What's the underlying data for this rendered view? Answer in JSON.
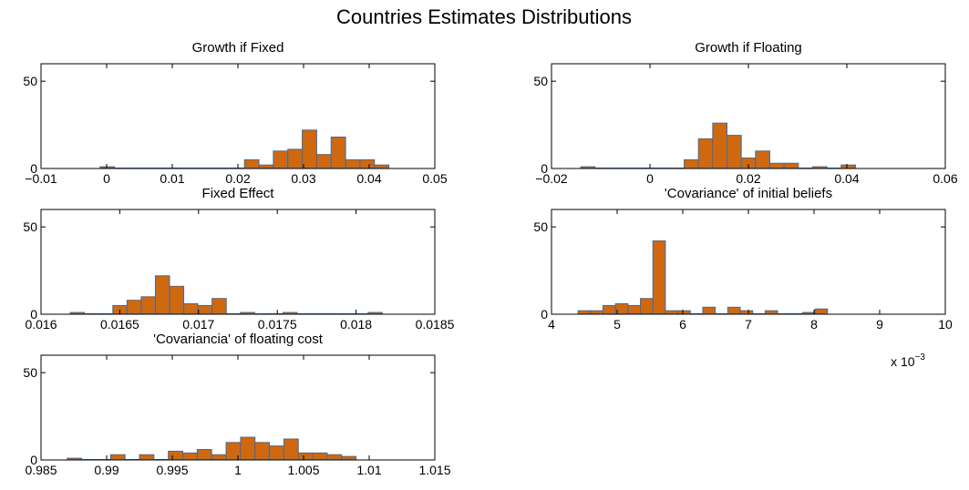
{
  "figure": {
    "title": "Countries Estimates Distributions"
  },
  "colors": {
    "bar_fill": "#D0680F",
    "bar_edge": "#3A6EA5",
    "axis": "#000000"
  },
  "chart_data": [
    {
      "type": "bar",
      "title": "Growth if Fixed",
      "xlim": [
        -0.01,
        0.05
      ],
      "ylim": [
        0,
        60
      ],
      "xticks": [
        -0.01,
        0,
        0.01,
        0.02,
        0.03,
        0.04,
        0.05
      ],
      "xtick_labels": [
        "−0.01",
        "0",
        "0.01",
        "0.02",
        "0.03",
        "0.04",
        "0.05"
      ],
      "yticks": [
        0,
        50
      ],
      "ytick_labels": [
        "0",
        "50"
      ],
      "bin_width": 0.0022,
      "bins": [
        {
          "x": 0.0001,
          "count": 1
        },
        {
          "x": 0.0221,
          "count": 5
        },
        {
          "x": 0.0243,
          "count": 2
        },
        {
          "x": 0.0265,
          "count": 10
        },
        {
          "x": 0.0287,
          "count": 11
        },
        {
          "x": 0.0309,
          "count": 22
        },
        {
          "x": 0.0331,
          "count": 8
        },
        {
          "x": 0.0353,
          "count": 18
        },
        {
          "x": 0.0375,
          "count": 5
        },
        {
          "x": 0.0397,
          "count": 5
        },
        {
          "x": 0.0419,
          "count": 2
        }
      ]
    },
    {
      "type": "bar",
      "title": "Growth if Floating",
      "xlim": [
        -0.02,
        0.06
      ],
      "ylim": [
        0,
        60
      ],
      "xticks": [
        -0.02,
        0,
        0.02,
        0.04,
        0.06
      ],
      "xtick_labels": [
        "−0.02",
        "0",
        "0.02",
        "0.04",
        "0.06"
      ],
      "yticks": [
        0,
        50
      ],
      "ytick_labels": [
        "0",
        "50"
      ],
      "bin_width": 0.0029,
      "bins": [
        {
          "x": -0.0126,
          "count": 1
        },
        {
          "x": 0.0084,
          "count": 5
        },
        {
          "x": 0.0113,
          "count": 17
        },
        {
          "x": 0.0142,
          "count": 26
        },
        {
          "x": 0.0171,
          "count": 19
        },
        {
          "x": 0.02,
          "count": 6
        },
        {
          "x": 0.0229,
          "count": 10
        },
        {
          "x": 0.0258,
          "count": 3
        },
        {
          "x": 0.0287,
          "count": 3
        },
        {
          "x": 0.0345,
          "count": 1
        },
        {
          "x": 0.0403,
          "count": 2
        }
      ]
    },
    {
      "type": "bar",
      "title": "Fixed Effect",
      "xlim": [
        0.016,
        0.0185
      ],
      "ylim": [
        0,
        60
      ],
      "xticks": [
        0.016,
        0.0165,
        0.017,
        0.0175,
        0.018,
        0.0185
      ],
      "xtick_labels": [
        "0.016",
        "0.0165",
        "0.017",
        "0.0175",
        "0.018",
        "0.0185"
      ],
      "yticks": [
        0,
        50
      ],
      "ytick_labels": [
        "0",
        "50"
      ],
      "bin_width": 9.02e-05,
      "bins": [
        {
          "x": 0.016231,
          "count": 1
        },
        {
          "x": 0.016501,
          "count": 5
        },
        {
          "x": 0.016591,
          "count": 8
        },
        {
          "x": 0.016681,
          "count": 10
        },
        {
          "x": 0.016771,
          "count": 22
        },
        {
          "x": 0.016861,
          "count": 16
        },
        {
          "x": 0.016951,
          "count": 6
        },
        {
          "x": 0.017041,
          "count": 5
        },
        {
          "x": 0.017131,
          "count": 9
        },
        {
          "x": 0.017311,
          "count": 1
        },
        {
          "x": 0.017581,
          "count": 1
        },
        {
          "x": 0.018121,
          "count": 1
        }
      ]
    },
    {
      "type": "bar",
      "title": "'Covariance' of initial beliefs",
      "xlim": [
        4,
        10
      ],
      "ylim": [
        0,
        60
      ],
      "x_multiplier_label": "x 10",
      "x_multiplier_exponent": "−3",
      "xticks": [
        4,
        5,
        6,
        7,
        8,
        9,
        10
      ],
      "xtick_labels": [
        "4",
        "5",
        "6",
        "7",
        "8",
        "9",
        "10"
      ],
      "yticks": [
        0,
        50
      ],
      "ytick_labels": [
        "0",
        "50"
      ],
      "bin_width": 0.19,
      "bins": [
        {
          "x": 4.5,
          "count": 2
        },
        {
          "x": 4.69,
          "count": 2
        },
        {
          "x": 4.88,
          "count": 5
        },
        {
          "x": 5.07,
          "count": 6
        },
        {
          "x": 5.26,
          "count": 5
        },
        {
          "x": 5.45,
          "count": 9
        },
        {
          "x": 5.64,
          "count": 42
        },
        {
          "x": 5.83,
          "count": 2
        },
        {
          "x": 6.02,
          "count": 2
        },
        {
          "x": 6.4,
          "count": 4
        },
        {
          "x": 6.78,
          "count": 4
        },
        {
          "x": 6.97,
          "count": 2
        },
        {
          "x": 7.35,
          "count": 2
        },
        {
          "x": 7.92,
          "count": 1
        },
        {
          "x": 8.11,
          "count": 3
        }
      ]
    },
    {
      "type": "bar",
      "title": "'Covariancia' of floating cost",
      "xlim": [
        0.985,
        1.015
      ],
      "ylim": [
        0,
        60
      ],
      "xticks": [
        0.985,
        0.99,
        0.995,
        1,
        1.005,
        1.01,
        1.015
      ],
      "xtick_labels": [
        "0.985",
        "0.99",
        "0.995",
        "1",
        "1.005",
        "1.01",
        "1.015"
      ],
      "yticks": [
        0,
        50
      ],
      "ytick_labels": [
        "0",
        "50"
      ],
      "bin_width": 0.0011,
      "bins": [
        {
          "x": 0.98755,
          "count": 1
        },
        {
          "x": 0.99085,
          "count": 3
        },
        {
          "x": 0.99305,
          "count": 3
        },
        {
          "x": 0.99525,
          "count": 5
        },
        {
          "x": 0.99635,
          "count": 4
        },
        {
          "x": 0.99745,
          "count": 6
        },
        {
          "x": 0.99855,
          "count": 3
        },
        {
          "x": 0.99965,
          "count": 10
        },
        {
          "x": 1.00075,
          "count": 13
        },
        {
          "x": 1.00185,
          "count": 10
        },
        {
          "x": 1.00295,
          "count": 8
        },
        {
          "x": 1.00405,
          "count": 12
        },
        {
          "x": 1.00515,
          "count": 4
        },
        {
          "x": 1.00625,
          "count": 4
        },
        {
          "x": 1.00735,
          "count": 3
        },
        {
          "x": 1.00845,
          "count": 2
        }
      ]
    }
  ]
}
